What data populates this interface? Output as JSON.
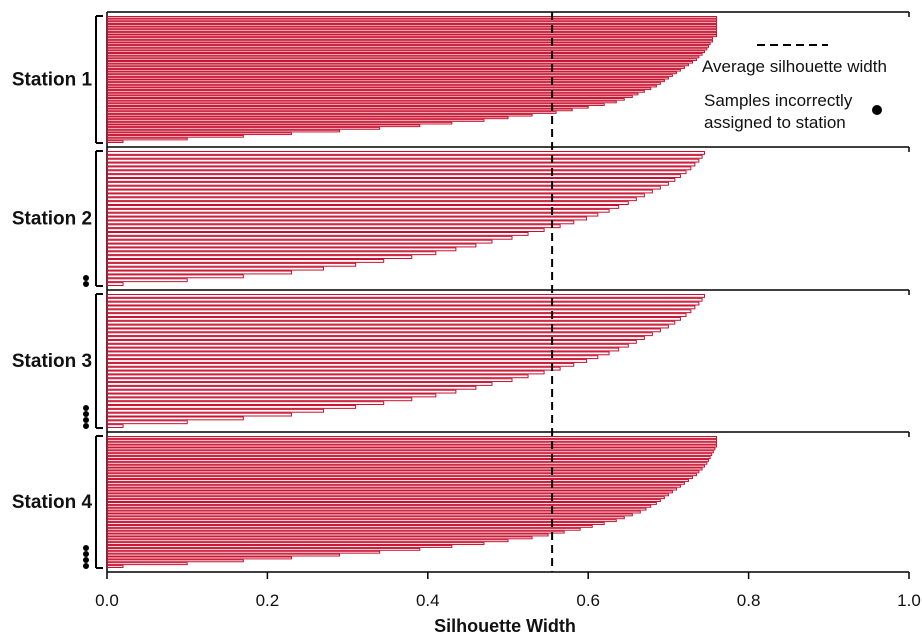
{
  "chart_data": {
    "type": "bar",
    "orientation": "horizontal",
    "xlabel": "Silhouette Width",
    "xlim": [
      0.0,
      1.0
    ],
    "xticks": [
      "0.0",
      "0.2",
      "0.4",
      "0.6",
      "0.8",
      "1.0"
    ],
    "average_silhouette_width": 0.555,
    "bar_color": "#c8102e",
    "legend": {
      "placement": "top-right",
      "average_label": "Average silhouette width",
      "incorrect_label_line1": "Samples incorrectly",
      "incorrect_label_line2": "assigned to station"
    },
    "series": [
      {
        "name": "Station 1",
        "incorrect_count": 0,
        "values": [
          0.76,
          0.76,
          0.76,
          0.76,
          0.76,
          0.76,
          0.76,
          0.76,
          0.755,
          0.755,
          0.752,
          0.75,
          0.748,
          0.745,
          0.742,
          0.738,
          0.735,
          0.73,
          0.725,
          0.72,
          0.715,
          0.71,
          0.705,
          0.7,
          0.695,
          0.69,
          0.685,
          0.678,
          0.67,
          0.662,
          0.655,
          0.645,
          0.635,
          0.62,
          0.6,
          0.58,
          0.56,
          0.53,
          0.5,
          0.47,
          0.43,
          0.39,
          0.34,
          0.29,
          0.23,
          0.17,
          0.1,
          0.02
        ]
      },
      {
        "name": "Station 2",
        "incorrect_count": 2,
        "values": [
          0.745,
          0.742,
          0.738,
          0.733,
          0.728,
          0.722,
          0.715,
          0.708,
          0.7,
          0.69,
          0.68,
          0.67,
          0.66,
          0.65,
          0.638,
          0.626,
          0.612,
          0.598,
          0.582,
          0.565,
          0.545,
          0.525,
          0.505,
          0.48,
          0.46,
          0.435,
          0.41,
          0.38,
          0.345,
          0.31,
          0.27,
          0.23,
          0.17,
          0.1,
          0.02
        ]
      },
      {
        "name": "Station 3",
        "incorrect_count": 4,
        "values": [
          0.745,
          0.742,
          0.738,
          0.733,
          0.728,
          0.722,
          0.715,
          0.708,
          0.7,
          0.69,
          0.68,
          0.67,
          0.66,
          0.65,
          0.638,
          0.626,
          0.612,
          0.598,
          0.582,
          0.565,
          0.545,
          0.525,
          0.505,
          0.48,
          0.46,
          0.435,
          0.41,
          0.38,
          0.345,
          0.31,
          0.27,
          0.23,
          0.17,
          0.1,
          0.02
        ]
      },
      {
        "name": "Station 4",
        "incorrect_count": 4,
        "values": [
          0.76,
          0.76,
          0.76,
          0.76,
          0.758,
          0.756,
          0.754,
          0.752,
          0.75,
          0.748,
          0.745,
          0.742,
          0.738,
          0.735,
          0.73,
          0.725,
          0.72,
          0.715,
          0.71,
          0.705,
          0.7,
          0.695,
          0.69,
          0.685,
          0.678,
          0.672,
          0.665,
          0.655,
          0.645,
          0.635,
          0.62,
          0.605,
          0.59,
          0.57,
          0.55,
          0.53,
          0.5,
          0.47,
          0.43,
          0.39,
          0.34,
          0.29,
          0.23,
          0.17,
          0.1,
          0.02
        ]
      }
    ]
  }
}
